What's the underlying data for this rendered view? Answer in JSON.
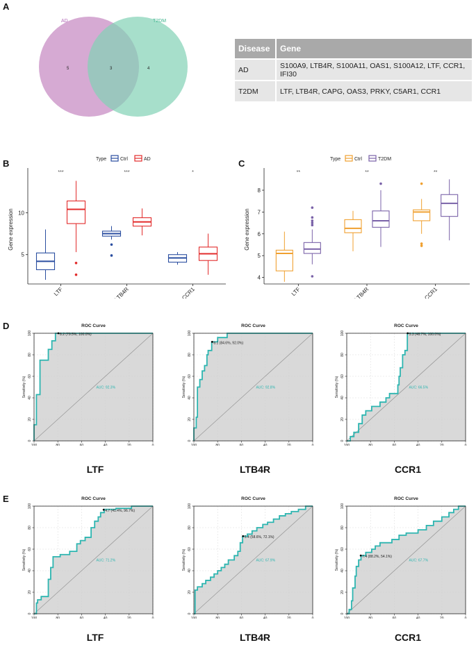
{
  "panels": {
    "A": "A",
    "B": "B",
    "C": "C",
    "D": "D",
    "E": "E"
  },
  "venn": {
    "left_label": "AD",
    "right_label": "T2DM",
    "left_only": "5",
    "overlap": "3",
    "right_only": "4",
    "left_color": "#c586c0",
    "right_color": "#82d1b5"
  },
  "gene_table": {
    "headers": [
      "Disease",
      "Gene"
    ],
    "rows": [
      {
        "disease": "AD",
        "genes": "S100A9, LTB4R, S100A11, OAS1, S100A12, LTF, CCR1, IFI30"
      },
      {
        "disease": "T2DM",
        "genes": "LTF, LTB4R, CAPG, OAS3, PRKY, C5AR1, CCR1"
      }
    ]
  },
  "chart_data": [
    {
      "id": "B",
      "type": "boxplot",
      "ylabel": "Gene expression",
      "ylim": [
        1.5,
        14.5
      ],
      "yticks": [
        5,
        10
      ],
      "legend": {
        "title": "Type",
        "items": [
          {
            "name": "Ctrl",
            "color": "#2a4ea0"
          },
          {
            "name": "AD",
            "color": "#e22b2b"
          }
        ]
      },
      "categories": [
        "LTF",
        "LTB4R",
        "CCR1"
      ],
      "signif": [
        "***",
        "***",
        "*"
      ],
      "groups": [
        {
          "name": "Ctrl",
          "color": "#2a4ea0",
          "boxes": [
            {
              "min": 2.0,
              "q1": 3.2,
              "median": 4.2,
              "q3": 5.2,
              "max": 8.0,
              "outliers": []
            },
            {
              "min": 6.8,
              "q1": 7.2,
              "median": 7.5,
              "q3": 7.8,
              "max": 8.4,
              "outliers": [
                6.2,
                4.9
              ]
            },
            {
              "min": 3.8,
              "q1": 4.1,
              "median": 4.6,
              "q3": 5.0,
              "max": 5.3,
              "outliers": []
            }
          ]
        },
        {
          "name": "AD",
          "color": "#e22b2b",
          "boxes": [
            {
              "min": 5.3,
              "q1": 8.7,
              "median": 10.4,
              "q3": 11.4,
              "max": 13.8,
              "outliers": [
                4.0,
                2.6
              ]
            },
            {
              "min": 7.3,
              "q1": 8.4,
              "median": 8.9,
              "q3": 9.4,
              "max": 10.5,
              "outliers": []
            },
            {
              "min": 2.6,
              "q1": 4.3,
              "median": 5.1,
              "q3": 5.9,
              "max": 7.5,
              "outliers": []
            }
          ]
        }
      ]
    },
    {
      "id": "C",
      "type": "boxplot",
      "ylabel": "Gene expression",
      "ylim": [
        3.7,
        8.7
      ],
      "yticks": [
        4,
        5,
        6,
        7,
        8
      ],
      "legend": {
        "title": "Type",
        "items": [
          {
            "name": "Ctrl",
            "color": "#f0a030"
          },
          {
            "name": "T2DM",
            "color": "#7a62a8"
          }
        ]
      },
      "categories": [
        "LTF",
        "LTB4R",
        "CCR1"
      ],
      "signif": [
        "**",
        "**",
        "**"
      ],
      "groups": [
        {
          "name": "Ctrl",
          "color": "#f0a030",
          "boxes": [
            {
              "min": 3.8,
              "q1": 4.3,
              "median": 5.1,
              "q3": 5.25,
              "max": 6.1,
              "outliers": []
            },
            {
              "min": 5.2,
              "q1": 6.05,
              "median": 6.25,
              "q3": 6.65,
              "max": 7.05,
              "outliers": []
            },
            {
              "min": 6.0,
              "q1": 6.6,
              "median": 7.0,
              "q3": 7.1,
              "max": 7.6,
              "outliers": [
                8.3,
                5.55,
                5.45
              ]
            }
          ]
        },
        {
          "name": "T2DM",
          "color": "#7a62a8",
          "boxes": [
            {
              "min": 4.6,
              "q1": 5.1,
              "median": 5.3,
              "q3": 5.6,
              "max": 6.2,
              "outliers": [
                7.2,
                6.75,
                6.6,
                6.5,
                6.4,
                4.05
              ]
            },
            {
              "min": 5.4,
              "q1": 6.3,
              "median": 6.6,
              "q3": 7.05,
              "max": 8.0,
              "outliers": [
                8.3
              ]
            },
            {
              "min": 5.7,
              "q1": 6.8,
              "median": 7.4,
              "q3": 7.8,
              "max": 8.5,
              "outliers": []
            }
          ]
        }
      ]
    },
    {
      "id": "D1",
      "type": "roc",
      "title": "ROC Curve",
      "gene": "LTF",
      "xlabel": "Specificity (%)",
      "ylabel": "Sensitivity (%)",
      "threshold_label": "8.2 (79.5%, 100.0%)",
      "threshold": [
        79.5,
        100.0
      ],
      "auc_label": "AUC: 92.3%",
      "points": [
        [
          100,
          0
        ],
        [
          100,
          15
        ],
        [
          98,
          15
        ],
        [
          98,
          43
        ],
        [
          95,
          43
        ],
        [
          95,
          75
        ],
        [
          88,
          75
        ],
        [
          88,
          85
        ],
        [
          85,
          85
        ],
        [
          85,
          93
        ],
        [
          82,
          93
        ],
        [
          82,
          100
        ],
        [
          0,
          100
        ]
      ]
    },
    {
      "id": "D2",
      "type": "roc",
      "title": "ROC Curve",
      "gene": "LTB4R",
      "xlabel": "Specificity (%)",
      "ylabel": "Sensitivity (%)",
      "threshold_label": "8.1 (84.6%, 92.0%)",
      "threshold": [
        84.6,
        92.0
      ],
      "auc_label": "AUC: 92.8%",
      "points": [
        [
          100,
          0
        ],
        [
          100,
          12
        ],
        [
          98,
          12
        ],
        [
          98,
          22
        ],
        [
          97,
          22
        ],
        [
          97,
          50
        ],
        [
          95,
          50
        ],
        [
          95,
          57
        ],
        [
          93,
          57
        ],
        [
          93,
          65
        ],
        [
          91,
          65
        ],
        [
          91,
          70
        ],
        [
          89,
          70
        ],
        [
          89,
          80
        ],
        [
          88,
          80
        ],
        [
          88,
          84
        ],
        [
          85,
          84
        ],
        [
          85,
          92
        ],
        [
          80,
          92
        ],
        [
          80,
          96
        ],
        [
          72,
          96
        ],
        [
          72,
          100
        ],
        [
          0,
          100
        ]
      ]
    },
    {
      "id": "D3",
      "type": "roc",
      "title": "ROC Curve",
      "gene": "CCR1",
      "xlabel": "Specificity (%)",
      "ylabel": "Sensitivity (%)",
      "threshold_label": "5.3 (48.7%, 100.0%)",
      "threshold": [
        48.7,
        100.0
      ],
      "auc_label": "AUC: 66.5%",
      "points": [
        [
          100,
          0
        ],
        [
          97,
          0
        ],
        [
          97,
          4
        ],
        [
          94,
          4
        ],
        [
          94,
          8
        ],
        [
          90,
          8
        ],
        [
          90,
          16
        ],
        [
          87,
          16
        ],
        [
          87,
          24
        ],
        [
          84,
          24
        ],
        [
          84,
          28
        ],
        [
          79,
          28
        ],
        [
          79,
          32
        ],
        [
          72,
          32
        ],
        [
          72,
          36
        ],
        [
          67,
          36
        ],
        [
          67,
          40
        ],
        [
          64,
          40
        ],
        [
          64,
          44
        ],
        [
          57,
          44
        ],
        [
          57,
          52
        ],
        [
          56,
          52
        ],
        [
          56,
          60
        ],
        [
          55,
          60
        ],
        [
          55,
          68
        ],
        [
          53,
          68
        ],
        [
          53,
          80
        ],
        [
          51,
          80
        ],
        [
          51,
          84
        ],
        [
          49,
          84
        ],
        [
          49,
          100
        ],
        [
          0,
          100
        ]
      ]
    },
    {
      "id": "E1",
      "type": "roc",
      "title": "ROC Curve",
      "gene": "LTF",
      "xlabel": "Specificity (%)",
      "ylabel": "Sensitivity (%)",
      "threshold_label": "4.7 (41.4%, 96.7%)",
      "threshold": [
        41.4,
        96.7
      ],
      "auc_label": "AUC: 71.2%",
      "points": [
        [
          100,
          0
        ],
        [
          98,
          0
        ],
        [
          98,
          10
        ],
        [
          97,
          10
        ],
        [
          97,
          13
        ],
        [
          94,
          13
        ],
        [
          94,
          16
        ],
        [
          88,
          16
        ],
        [
          88,
          32
        ],
        [
          86,
          32
        ],
        [
          86,
          43
        ],
        [
          84,
          43
        ],
        [
          84,
          53
        ],
        [
          78,
          53
        ],
        [
          78,
          55
        ],
        [
          70,
          55
        ],
        [
          70,
          58
        ],
        [
          64,
          58
        ],
        [
          64,
          65
        ],
        [
          61,
          65
        ],
        [
          61,
          68
        ],
        [
          57,
          68
        ],
        [
          57,
          71
        ],
        [
          52,
          71
        ],
        [
          52,
          80
        ],
        [
          49,
          80
        ],
        [
          49,
          86
        ],
        [
          46,
          86
        ],
        [
          46,
          90
        ],
        [
          44,
          90
        ],
        [
          44,
          94
        ],
        [
          41,
          94
        ],
        [
          41,
          97
        ],
        [
          31,
          97
        ],
        [
          31,
          98
        ],
        [
          18,
          98
        ],
        [
          18,
          100
        ],
        [
          0,
          100
        ]
      ]
    },
    {
      "id": "E2",
      "type": "roc",
      "title": "ROC Curve",
      "gene": "LTB4R",
      "xlabel": "Specificity (%)",
      "ylabel": "Sensitivity (%)",
      "threshold_label": "5.4 (58.6%, 72.1%)",
      "threshold": [
        58.6,
        72.1
      ],
      "auc_label": "AUC: 67.9%",
      "points": [
        [
          100,
          0
        ],
        [
          99,
          0
        ],
        [
          99,
          22
        ],
        [
          97,
          22
        ],
        [
          97,
          25
        ],
        [
          93,
          25
        ],
        [
          93,
          28
        ],
        [
          90,
          28
        ],
        [
          90,
          31
        ],
        [
          86,
          31
        ],
        [
          86,
          34
        ],
        [
          83,
          34
        ],
        [
          83,
          37
        ],
        [
          80,
          37
        ],
        [
          80,
          40
        ],
        [
          77,
          40
        ],
        [
          77,
          43
        ],
        [
          74,
          43
        ],
        [
          74,
          46
        ],
        [
          71,
          46
        ],
        [
          71,
          50
        ],
        [
          66,
          50
        ],
        [
          66,
          54
        ],
        [
          63,
          54
        ],
        [
          63,
          58
        ],
        [
          61,
          58
        ],
        [
          61,
          66
        ],
        [
          59,
          66
        ],
        [
          59,
          72
        ],
        [
          55,
          72
        ],
        [
          55,
          74
        ],
        [
          51,
          74
        ],
        [
          51,
          77
        ],
        [
          47,
          77
        ],
        [
          47,
          80
        ],
        [
          42,
          80
        ],
        [
          42,
          83
        ],
        [
          38,
          83
        ],
        [
          38,
          85
        ],
        [
          33,
          85
        ],
        [
          33,
          88
        ],
        [
          28,
          88
        ],
        [
          28,
          91
        ],
        [
          23,
          91
        ],
        [
          23,
          93
        ],
        [
          18,
          93
        ],
        [
          18,
          95
        ],
        [
          12,
          95
        ],
        [
          12,
          97
        ],
        [
          6,
          97
        ],
        [
          6,
          100
        ],
        [
          0,
          100
        ]
      ]
    },
    {
      "id": "E3",
      "type": "roc",
      "title": "ROC Curve",
      "gene": "CCR1",
      "xlabel": "Specificity (%)",
      "ylabel": "Sensitivity (%)",
      "threshold_label": "7.4 (88.2%, 54.1%)",
      "threshold": [
        88.2,
        54.1
      ],
      "auc_label": "AUC: 67.7%",
      "points": [
        [
          100,
          0
        ],
        [
          98,
          0
        ],
        [
          98,
          4
        ],
        [
          96,
          4
        ],
        [
          96,
          12
        ],
        [
          95,
          12
        ],
        [
          95,
          24
        ],
        [
          93,
          24
        ],
        [
          93,
          35
        ],
        [
          92,
          35
        ],
        [
          92,
          44
        ],
        [
          90,
          44
        ],
        [
          90,
          50
        ],
        [
          88,
          50
        ],
        [
          88,
          54
        ],
        [
          84,
          54
        ],
        [
          84,
          57
        ],
        [
          79,
          57
        ],
        [
          79,
          60
        ],
        [
          76,
          60
        ],
        [
          76,
          63
        ],
        [
          72,
          63
        ],
        [
          72,
          66
        ],
        [
          62,
          66
        ],
        [
          62,
          69
        ],
        [
          56,
          69
        ],
        [
          56,
          73
        ],
        [
          50,
          73
        ],
        [
          50,
          75
        ],
        [
          40,
          75
        ],
        [
          40,
          78
        ],
        [
          33,
          78
        ],
        [
          33,
          82
        ],
        [
          27,
          82
        ],
        [
          27,
          86
        ],
        [
          20,
          86
        ],
        [
          20,
          90
        ],
        [
          14,
          90
        ],
        [
          14,
          94
        ],
        [
          10,
          94
        ],
        [
          10,
          97
        ],
        [
          6,
          97
        ],
        [
          6,
          100
        ],
        [
          0,
          100
        ]
      ]
    }
  ]
}
